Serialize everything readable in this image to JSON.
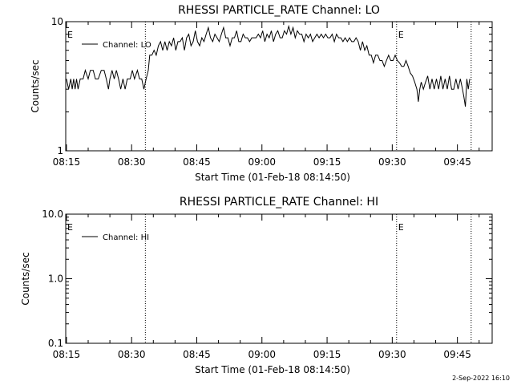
{
  "footer": {
    "timestamp": "2-Sep-2022 16:10"
  },
  "chart_data": [
    {
      "type": "line",
      "title": "RHESSI PARTICLE_RATE Channel: LO",
      "xlabel": "Start Time (01-Feb-18 08:14:50)",
      "ylabel": "Counts/sec",
      "yscale": "log",
      "xlim": [
        "08:14:50",
        "09:53:00"
      ],
      "ylim": [
        1,
        10
      ],
      "x_ticks": [
        "08:15",
        "08:30",
        "08:45",
        "09:00",
        "09:15",
        "09:30",
        "09:45"
      ],
      "y_ticks": [
        "1",
        "10"
      ],
      "markers": [
        {
          "label": "E",
          "time": "08:14:50"
        },
        {
          "label": "",
          "time": "08:33:10"
        },
        {
          "label": "E",
          "time": "09:31:00"
        },
        {
          "label": "",
          "time": "09:48:10"
        }
      ],
      "legend": {
        "placement": "top-left",
        "entries": [
          "Channel: LO"
        ]
      },
      "series": [
        {
          "name": "Channel: LO",
          "color": "#000000",
          "points": [
            [
              "08:15:00",
              3.6
            ],
            [
              "08:15:30",
              3
            ],
            [
              "08:16:00",
              3.6
            ],
            [
              "08:16:20",
              3
            ],
            [
              "08:16:40",
              3.6
            ],
            [
              "08:17:00",
              3
            ],
            [
              "08:17:20",
              3.6
            ],
            [
              "08:17:40",
              3
            ],
            [
              "08:18:10",
              3.6
            ],
            [
              "08:18:50",
              3.6
            ],
            [
              "08:19:20",
              4.2
            ],
            [
              "08:20:00",
              3.6
            ],
            [
              "08:20:30",
              4.2
            ],
            [
              "08:21:10",
              4.2
            ],
            [
              "08:21:40",
              3.6
            ],
            [
              "08:22:20",
              3.6
            ],
            [
              "08:23:00",
              4.2
            ],
            [
              "08:23:40",
              4.2
            ],
            [
              "08:24:10",
              3.6
            ],
            [
              "08:24:40",
              3
            ],
            [
              "08:25:00",
              3.6
            ],
            [
              "08:25:30",
              4.2
            ],
            [
              "08:26:00",
              3.6
            ],
            [
              "08:26:30",
              4.2
            ],
            [
              "08:27:00",
              3.6
            ],
            [
              "08:27:30",
              3
            ],
            [
              "08:28:00",
              3.6
            ],
            [
              "08:28:30",
              3
            ],
            [
              "08:29:00",
              3.6
            ],
            [
              "08:29:40",
              3.6
            ],
            [
              "08:30:10",
              4.2
            ],
            [
              "08:30:40",
              3.6
            ],
            [
              "08:31:20",
              4.2
            ],
            [
              "08:31:50",
              3.6
            ],
            [
              "08:32:20",
              3.6
            ],
            [
              "08:32:50",
              3
            ],
            [
              "08:33:20",
              3.6
            ],
            [
              "08:33:50",
              4.2
            ],
            [
              "08:34:10",
              5.5
            ],
            [
              "08:34:40",
              5.5
            ],
            [
              "08:35:10",
              6
            ],
            [
              "08:35:40",
              5.5
            ],
            [
              "08:36:10",
              6.5
            ],
            [
              "08:36:40",
              7
            ],
            [
              "08:37:10",
              6
            ],
            [
              "08:37:40",
              7
            ],
            [
              "08:38:10",
              6
            ],
            [
              "08:38:40",
              7
            ],
            [
              "08:39:10",
              6.5
            ],
            [
              "08:39:40",
              7.5
            ],
            [
              "08:40:10",
              6
            ],
            [
              "08:40:40",
              7
            ],
            [
              "08:41:10",
              7
            ],
            [
              "08:41:40",
              7.5
            ],
            [
              "08:42:10",
              6
            ],
            [
              "08:42:40",
              7.5
            ],
            [
              "08:43:10",
              8
            ],
            [
              "08:43:40",
              6.5
            ],
            [
              "08:44:10",
              7
            ],
            [
              "08:44:40",
              8.5
            ],
            [
              "08:45:10",
              7
            ],
            [
              "08:45:40",
              6.5
            ],
            [
              "08:46:10",
              7.5
            ],
            [
              "08:46:40",
              7
            ],
            [
              "08:47:10",
              8
            ],
            [
              "08:47:40",
              9
            ],
            [
              "08:48:10",
              7.5
            ],
            [
              "08:48:40",
              7
            ],
            [
              "08:49:10",
              8
            ],
            [
              "08:49:40",
              7.5
            ],
            [
              "08:50:10",
              7
            ],
            [
              "08:50:40",
              8
            ],
            [
              "08:51:10",
              9
            ],
            [
              "08:51:40",
              7.5
            ],
            [
              "08:52:10",
              7.5
            ],
            [
              "08:52:40",
              6.5
            ],
            [
              "08:53:10",
              7.5
            ],
            [
              "08:53:40",
              7.5
            ],
            [
              "08:54:10",
              8.5
            ],
            [
              "08:54:40",
              7
            ],
            [
              "08:55:10",
              7
            ],
            [
              "08:55:40",
              8
            ],
            [
              "08:56:10",
              7.5
            ],
            [
              "08:56:40",
              7.5
            ],
            [
              "08:57:10",
              7
            ],
            [
              "08:57:40",
              7.5
            ],
            [
              "08:58:10",
              7.5
            ],
            [
              "08:58:40",
              7.5
            ],
            [
              "08:59:10",
              8
            ],
            [
              "08:59:40",
              7.5
            ],
            [
              "09:00:10",
              8.5
            ],
            [
              "09:00:40",
              7
            ],
            [
              "09:01:10",
              8
            ],
            [
              "09:01:40",
              7.5
            ],
            [
              "09:02:10",
              8.5
            ],
            [
              "09:02:40",
              7
            ],
            [
              "09:03:10",
              8
            ],
            [
              "09:03:40",
              8.5
            ],
            [
              "09:04:10",
              7.5
            ],
            [
              "09:04:40",
              7.5
            ],
            [
              "09:05:10",
              8.5
            ],
            [
              "09:05:40",
              8
            ],
            [
              "09:06:10",
              9.2
            ],
            [
              "09:06:40",
              8
            ],
            [
              "09:07:10",
              9
            ],
            [
              "09:07:40",
              7.5
            ],
            [
              "09:08:10",
              8.5
            ],
            [
              "09:08:40",
              8
            ],
            [
              "09:09:10",
              8
            ],
            [
              "09:09:40",
              7
            ],
            [
              "09:10:10",
              8
            ],
            [
              "09:10:40",
              7.5
            ],
            [
              "09:11:10",
              8
            ],
            [
              "09:11:40",
              7
            ],
            [
              "09:12:10",
              7.5
            ],
            [
              "09:12:40",
              8
            ],
            [
              "09:13:10",
              7.5
            ],
            [
              "09:13:40",
              8
            ],
            [
              "09:14:10",
              7.5
            ],
            [
              "09:14:40",
              8
            ],
            [
              "09:15:10",
              7.5
            ],
            [
              "09:15:40",
              7.5
            ],
            [
              "09:16:10",
              8
            ],
            [
              "09:16:40",
              7
            ],
            [
              "09:17:10",
              8
            ],
            [
              "09:17:40",
              7.5
            ],
            [
              "09:18:10",
              7.5
            ],
            [
              "09:18:40",
              7
            ],
            [
              "09:19:10",
              7.5
            ],
            [
              "09:19:40",
              7
            ],
            [
              "09:20:10",
              7.5
            ],
            [
              "09:20:40",
              7
            ],
            [
              "09:21:10",
              7
            ],
            [
              "09:21:40",
              7.5
            ],
            [
              "09:22:10",
              7
            ],
            [
              "09:22:40",
              6
            ],
            [
              "09:23:10",
              7
            ],
            [
              "09:23:40",
              6
            ],
            [
              "09:24:10",
              6.5
            ],
            [
              "09:24:40",
              5.5
            ],
            [
              "09:25:10",
              5.5
            ],
            [
              "09:25:40",
              4.8
            ],
            [
              "09:26:10",
              5.5
            ],
            [
              "09:26:40",
              5.5
            ],
            [
              "09:27:10",
              5
            ],
            [
              "09:27:40",
              5
            ],
            [
              "09:28:10",
              4.5
            ],
            [
              "09:28:40",
              5
            ],
            [
              "09:29:10",
              5.5
            ],
            [
              "09:29:40",
              5
            ],
            [
              "09:30:10",
              5
            ],
            [
              "09:30:40",
              5.5
            ],
            [
              "09:31:10",
              5
            ],
            [
              "09:31:40",
              4.8
            ],
            [
              "09:32:10",
              4.5
            ],
            [
              "09:32:40",
              4.5
            ],
            [
              "09:33:10",
              5
            ],
            [
              "09:33:40",
              4.5
            ],
            [
              "09:34:10",
              4
            ],
            [
              "09:34:40",
              3.8
            ],
            [
              "09:35:10",
              3.4
            ],
            [
              "09:35:40",
              3
            ],
            [
              "09:36:00",
              2.4
            ],
            [
              "09:36:20",
              3
            ],
            [
              "09:36:40",
              3.4
            ],
            [
              "09:37:10",
              3
            ],
            [
              "09:37:40",
              3.4
            ],
            [
              "09:38:10",
              3.8
            ],
            [
              "09:38:40",
              3
            ],
            [
              "09:39:10",
              3.6
            ],
            [
              "09:39:40",
              3
            ],
            [
              "09:40:10",
              3.6
            ],
            [
              "09:40:40",
              3
            ],
            [
              "09:41:10",
              3.8
            ],
            [
              "09:41:40",
              3
            ],
            [
              "09:42:10",
              3.6
            ],
            [
              "09:42:40",
              3
            ],
            [
              "09:43:10",
              3.8
            ],
            [
              "09:43:40",
              3
            ],
            [
              "09:44:10",
              3
            ],
            [
              "09:44:40",
              3.6
            ],
            [
              "09:45:10",
              3
            ],
            [
              "09:45:40",
              3.6
            ],
            [
              "09:46:10",
              3
            ],
            [
              "09:46:30",
              2.6
            ],
            [
              "09:46:50",
              2.2
            ],
            [
              "09:47:10",
              3.6
            ],
            [
              "09:47:30",
              3
            ],
            [
              "09:47:50",
              3.6
            ]
          ]
        }
      ]
    },
    {
      "type": "line",
      "title": "RHESSI PARTICLE_RATE Channel: HI",
      "xlabel": "Start Time (01-Feb-18 08:14:50)",
      "ylabel": "Counts/sec",
      "yscale": "log",
      "xlim": [
        "08:14:50",
        "09:53:00"
      ],
      "ylim": [
        0.1,
        10
      ],
      "x_ticks": [
        "08:15",
        "08:30",
        "08:45",
        "09:00",
        "09:15",
        "09:30",
        "09:45"
      ],
      "y_ticks": [
        "0.1",
        "1.0",
        "10.0"
      ],
      "markers": [
        {
          "label": "E",
          "time": "08:14:50"
        },
        {
          "label": "",
          "time": "08:33:10"
        },
        {
          "label": "E",
          "time": "09:31:00"
        },
        {
          "label": "",
          "time": "09:48:10"
        }
      ],
      "legend": {
        "placement": "top-left",
        "entries": [
          "Channel: HI"
        ]
      },
      "series": [
        {
          "name": "Channel: HI",
          "color": "#000000",
          "points": []
        }
      ]
    }
  ]
}
